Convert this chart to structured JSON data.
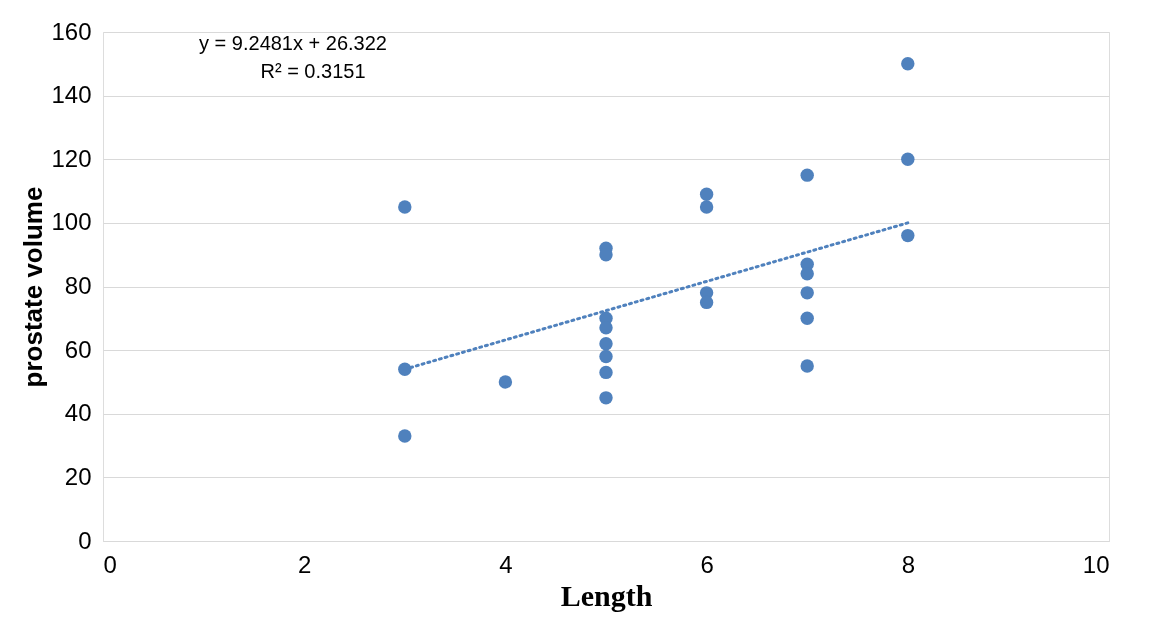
{
  "chart_data": {
    "type": "scatter",
    "xlabel": "Length",
    "ylabel": "prostate volume",
    "annotations": [
      "y = 9.2481x + 26.322",
      "R² = 0.3151"
    ],
    "series": [
      {
        "type": "scatter",
        "color": "#4f81bd",
        "marker": "circle",
        "x": [
          3,
          3,
          3,
          4,
          5,
          5,
          5,
          5,
          5,
          5,
          5,
          5,
          6,
          6,
          6,
          6,
          7,
          7,
          7,
          7,
          7,
          7,
          8,
          8,
          8
        ],
        "values": [
          105,
          54,
          33,
          50,
          92,
          90,
          70,
          67,
          62,
          58,
          53,
          45,
          109,
          105,
          78,
          75,
          115,
          87,
          84,
          78,
          70,
          55,
          150,
          120,
          96
        ]
      },
      {
        "type": "line",
        "color": "#4f81bd",
        "line_style": "dotted",
        "x": [
          3,
          8
        ],
        "values": [
          54,
          100
        ]
      }
    ],
    "xlim": [
      0,
      10
    ],
    "xticks": [
      0,
      2,
      4,
      6,
      8,
      10
    ],
    "ylim": [
      0,
      160
    ],
    "yticks": [
      0,
      20,
      40,
      60,
      80,
      100,
      120,
      140,
      160
    ],
    "grid": "y"
  }
}
